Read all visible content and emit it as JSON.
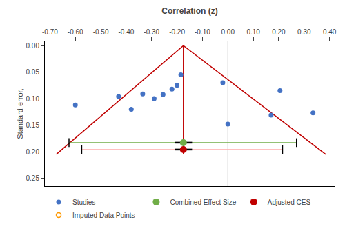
{
  "chart_data": {
    "type": "scatter",
    "xlabel": "Correlation (z)",
    "ylabel": "Standard error,",
    "xlim": [
      -0.72,
      0.42
    ],
    "ylim": [
      0.265,
      -0.008
    ],
    "xticks": [
      {
        "value": -0.7,
        "label": "-0.70"
      },
      {
        "value": -0.6,
        "label": "-0.60"
      },
      {
        "value": -0.5,
        "label": "-0.50"
      },
      {
        "value": -0.4,
        "label": "-0.40"
      },
      {
        "value": -0.3,
        "label": "-0.30"
      },
      {
        "value": -0.2,
        "label": "-0.20"
      },
      {
        "value": -0.1,
        "label": "-0.10"
      },
      {
        "value": 0.0,
        "label": "0.00"
      },
      {
        "value": 0.1,
        "label": "0.10"
      },
      {
        "value": 0.2,
        "label": "0.20"
      },
      {
        "value": 0.3,
        "label": "0.30"
      },
      {
        "value": 0.4,
        "label": "0.40"
      }
    ],
    "yticks": [
      {
        "value": 0.0,
        "label": "0.00"
      },
      {
        "value": 0.05,
        "label": "0.05"
      },
      {
        "value": 0.1,
        "label": "0.10"
      },
      {
        "value": 0.15,
        "label": "0.15"
      },
      {
        "value": 0.2,
        "label": "0.20"
      },
      {
        "value": 0.25,
        "label": "0.25"
      }
    ],
    "grid": false,
    "legend": "bottom",
    "series": [
      {
        "name": "Studies",
        "color": "#4472C4",
        "marker": "circle",
        "x": [
          -0.6,
          -0.43,
          -0.38,
          -0.335,
          -0.29,
          -0.255,
          -0.22,
          -0.2,
          -0.185,
          -0.02,
          0.0,
          0.17,
          0.205,
          0.335
        ],
        "y": [
          0.112,
          0.096,
          0.12,
          0.091,
          0.1,
          0.092,
          0.082,
          0.075,
          0.055,
          0.07,
          0.148,
          0.131,
          0.085,
          0.127
        ]
      },
      {
        "name": "Combined Effect Size",
        "color": "#70AD47",
        "marker": "circle",
        "x": [
          -0.175
        ],
        "y": [
          0.183
        ],
        "ci_low": [
          -0.625
        ],
        "ci_high": [
          0.27
        ],
        "ci_color": "#70AD47"
      },
      {
        "name": "Adjusted CES",
        "color": "#C00000",
        "marker": "circle",
        "x": [
          -0.175
        ],
        "y": [
          0.196
        ],
        "ci_low": [
          -0.575
        ],
        "ci_high": [
          0.215
        ],
        "ci_color": "#FFAAAA"
      },
      {
        "name": "Imputed Data Points",
        "color": "#FF9900",
        "marker": "open_circle",
        "x": [],
        "y": []
      }
    ],
    "funnel": {
      "apex_x": -0.175,
      "apex_y": 0.0,
      "base_left": -0.675,
      "base_right": 0.385,
      "base_y": 0.205,
      "color": "#C00000"
    },
    "reference_line": {
      "x": 0.0,
      "color": "#BBBBBB"
    }
  }
}
